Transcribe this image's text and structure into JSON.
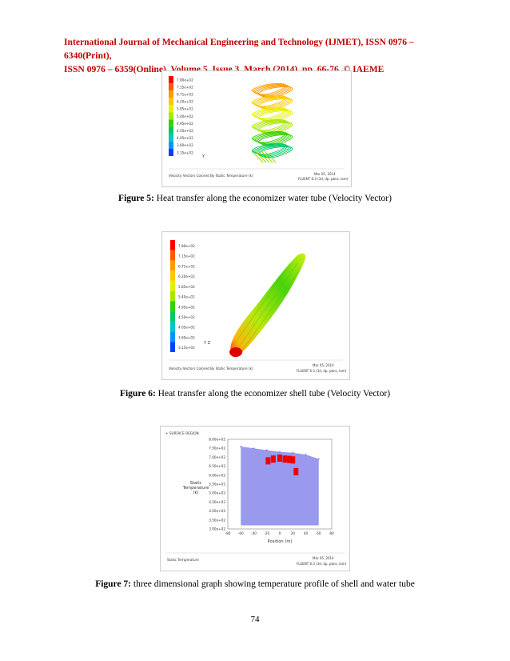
{
  "header": {
    "line1": "International Journal of Mechanical Engineering and Technology (IJMET), ISSN 0976 – 6340(Print),",
    "line2": "ISSN 0976 – 6359(Online), Volume 5, Issue 3, March (2014), pp. 66-76, © IAEME"
  },
  "colormap": [
    "#ff0000",
    "#ff5a00",
    "#ff9a00",
    "#ffc800",
    "#e6f000",
    "#a8e800",
    "#32d200",
    "#00c864",
    "#00c8c8",
    "#0096ff",
    "#0040ff"
  ],
  "figure5": {
    "legend_labels": [
      "7.80e+02",
      "7.15e+02",
      "6.71e+02",
      "6.20e+02",
      "5.85e+02",
      "5.40e+02",
      "4.95e+02",
      "4.50e+02",
      "4.05e+02",
      "3.60e+02",
      "3.15e+02"
    ],
    "footer_left": "Velocity Vectors Colored By Static Temperature (k)",
    "footer_right_1": "Mar 05, 2014",
    "footer_right_2": "FLUENT 6.3 (3d, dp, pbns, lam)",
    "caption_label": "Figure 5:",
    "caption_text": " Heat transfer along the economizer water tube (Velocity Vector)"
  },
  "figure6": {
    "legend_labels": [
      "7.80e+02",
      "7.15e+02",
      "6.71e+02",
      "6.20e+02",
      "5.85e+02",
      "5.40e+02",
      "4.95e+02",
      "4.50e+02",
      "4.05e+02",
      "3.60e+02",
      "3.15e+02"
    ],
    "footer_left": "Velocity Vectors Colored By Static Temperature (k)",
    "footer_right_1": "Mar 05, 2014",
    "footer_right_2": "FLUENT 6.3 (3d, dp, pbns, lam)",
    "caption_label": "Figure 6:",
    "caption_text": " Heat transfer along the economizer shell tube (Velocity Vector)"
  },
  "figure7": {
    "legend_tag": "+ SURFACE REGION",
    "footer_left": "Static Temperature",
    "footer_right_1": "Mar 05, 2014",
    "footer_right_2": "FLUENT 6.3 (3d, dp, pbns, lam)",
    "caption_label": "Figure 7:",
    "caption_text": " three dimensional graph showing temperature profile of shell and water tube",
    "chart_data": {
      "type": "scatter",
      "ylabel": "Static Temperature (k)",
      "xlabel": "Position (m)",
      "y_ticks": [
        "8.00e+02",
        "7.50e+02",
        "7.00e+02",
        "6.50e+02",
        "6.00e+02",
        "5.50e+02",
        "5.00e+02",
        "4.50e+02",
        "4.00e+02",
        "3.50e+02",
        "3.00e+02"
      ],
      "x_ticks": [
        "-80",
        "-60",
        "-40",
        "-20",
        "0",
        "20",
        "40",
        "60",
        "80"
      ],
      "ylim": [
        300,
        800
      ],
      "xlim": [
        -80,
        80
      ],
      "series": [
        {
          "color": "#9999ee",
          "x": [
            -60,
            -40,
            -20,
            0,
            20,
            40,
            60
          ],
          "y": [
            760,
            750,
            740,
            730,
            725,
            715,
            690
          ]
        },
        {
          "color": "#ee0000",
          "x": [
            -18,
            -10,
            0,
            8,
            15,
            20,
            25
          ],
          "y": [
            700,
            710,
            715,
            710,
            708,
            705,
            640
          ]
        }
      ]
    }
  },
  "page_number": "74"
}
